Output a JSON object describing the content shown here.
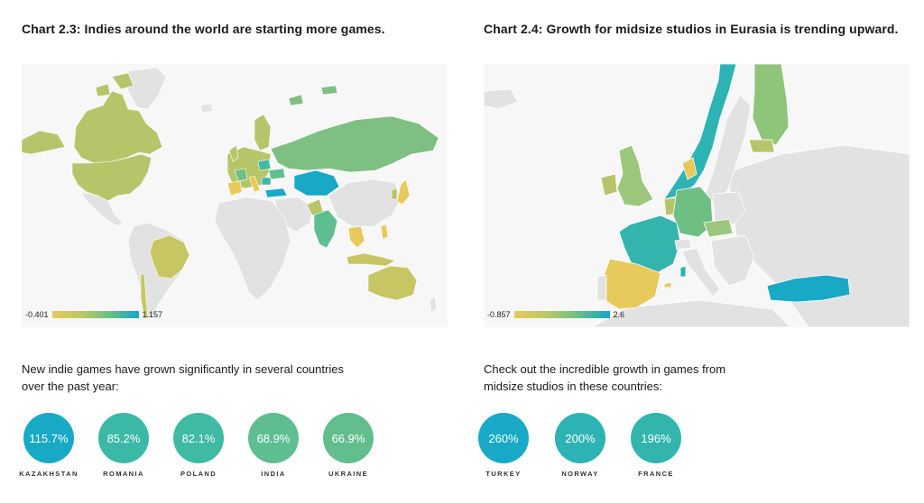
{
  "left_chart": {
    "title": "Chart 2.3: Indies around the world are starting more games.",
    "legend": {
      "min": "-0.401",
      "max": "1.157"
    },
    "colors": {
      "low": "#e8c95c",
      "mid": "#9cc77c",
      "high": "#13a7c5",
      "ocean": "#f7f7f7",
      "no_data": "#e2e2e2"
    },
    "intro": "New indie games have grown significantly in several countries over the past year:",
    "stats": [
      {
        "value": "115.7%",
        "country": "KAZAKHSTAN",
        "color": "#17a9c6"
      },
      {
        "value": "85.2%",
        "country": "ROMANIA",
        "color": "#3bb9a6"
      },
      {
        "value": "82.1%",
        "country": "POLAND",
        "color": "#3fbaa3"
      },
      {
        "value": "68.9%",
        "country": "INDIA",
        "color": "#5fbe90"
      },
      {
        "value": "66.9%",
        "country": "UKRAINE",
        "color": "#63be8e"
      }
    ]
  },
  "right_chart": {
    "title": "Chart 2.4: Growth for midsize studios in Eurasia is trending upward.",
    "legend": {
      "min": "-0.857",
      "max": "2.6"
    },
    "intro": "Check out the incredible growth in games from midsize studios in these countries:",
    "stats": [
      {
        "value": "260%",
        "country": "TURKEY",
        "color": "#17a9c6"
      },
      {
        "value": "200%",
        "country": "NORWAY",
        "color": "#2db3b3"
      },
      {
        "value": "196%",
        "country": "FRANCE",
        "color": "#33b5ae"
      }
    ]
  }
}
